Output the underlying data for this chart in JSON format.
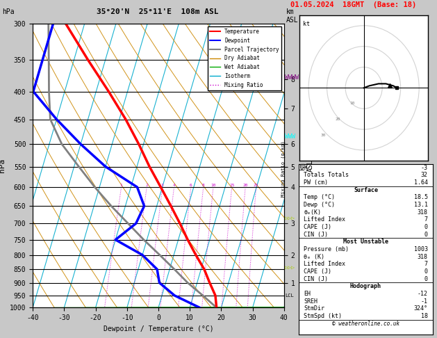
{
  "title_left": "35°20'N  25°11'E  108m ASL",
  "title_right": "01.05.2024  18GMT  (Base: 18)",
  "xlabel": "Dewpoint / Temperature (°C)",
  "ylabel_left": "hPa",
  "pressure_ticks": [
    300,
    350,
    400,
    450,
    500,
    550,
    600,
    650,
    700,
    750,
    800,
    850,
    900,
    950,
    1000
  ],
  "temp_range": [
    -40,
    40
  ],
  "skew_factor": 22,
  "dry_adiabat_color": "#cc8800",
  "wet_adiabat_color": "#00aa00",
  "isotherm_color": "#00aacc",
  "mixing_ratio_color": "#cc00cc",
  "mixing_ratio_vals": [
    1,
    2,
    3,
    4,
    6,
    8,
    10,
    15,
    20,
    25
  ],
  "temp_profile_p": [
    1000,
    950,
    900,
    850,
    800,
    750,
    700,
    650,
    600,
    550,
    500,
    450,
    400,
    350,
    300
  ],
  "temp_profile_t": [
    18.5,
    17.0,
    14.0,
    11.0,
    7.0,
    3.0,
    -1.0,
    -5.5,
    -10.5,
    -16.0,
    -21.5,
    -28.0,
    -36.0,
    -45.5,
    -56.0
  ],
  "dewp_profile_p": [
    1000,
    950,
    900,
    850,
    800,
    750,
    700,
    650,
    600,
    550,
    500,
    450,
    400,
    350,
    300
  ],
  "dewp_profile_t": [
    13.1,
    4.0,
    -2.0,
    -4.0,
    -10.0,
    -20.0,
    -15.0,
    -14.0,
    -18.0,
    -30.0,
    -40.0,
    -50.0,
    -60.0,
    -60.0,
    -60.0
  ],
  "parcel_profile_p": [
    1000,
    950,
    900,
    850,
    800,
    750,
    700,
    650,
    600,
    550,
    500,
    450,
    400,
    350,
    300
  ],
  "parcel_profile_t": [
    18.5,
    13.0,
    7.0,
    1.5,
    -4.5,
    -11.0,
    -17.5,
    -24.5,
    -31.5,
    -38.5,
    -46.0,
    -52.0,
    -55.0,
    -58.0,
    -61.5
  ],
  "lcl_pressure": 950,
  "stats_k": "-3",
  "stats_totals": "32",
  "stats_pw": "1.64",
  "surf_temp": "18.5",
  "surf_dewp": "13.1",
  "surf_thetae": "318",
  "surf_li": "7",
  "surf_cape": "0",
  "surf_cin": "0",
  "mu_pressure": "1003",
  "mu_thetae": "318",
  "mu_li": "7",
  "mu_cape": "0",
  "mu_cin": "0",
  "hodo_eh": "-12",
  "hodo_sreh": "-1",
  "hodo_stmdir": "324°",
  "hodo_stmspd": "18",
  "copyright": "© weatheronline.co.uk",
  "km_ticks": [
    1,
    2,
    3,
    4,
    5,
    6,
    7,
    8
  ],
  "km_pressures": [
    900,
    800,
    700,
    600,
    550,
    500,
    430,
    380
  ]
}
